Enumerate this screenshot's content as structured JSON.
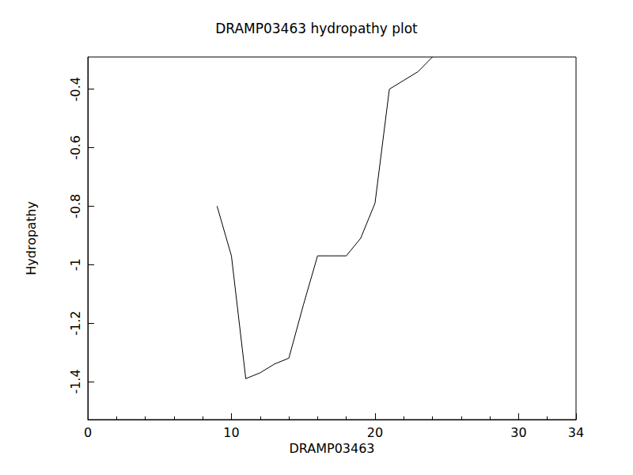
{
  "chart_data": {
    "type": "line",
    "title": "DRAMP03463 hydropathy plot",
    "x_label": "DRAMP03463",
    "y_label": "Hydropathy",
    "x": [
      9,
      10,
      11,
      12,
      13,
      14,
      15,
      16,
      17,
      18,
      19,
      20,
      21,
      22,
      23,
      24
    ],
    "values": [
      -0.8,
      -0.97,
      -1.39,
      -1.37,
      -1.34,
      -1.32,
      -1.14,
      -0.97,
      -0.97,
      -0.97,
      -0.91,
      -0.79,
      -0.4,
      -0.37,
      -0.34,
      -0.29
    ],
    "color": "#000000",
    "xlim": [
      0,
      34
    ],
    "xticks": [
      0,
      10,
      20,
      30
    ],
    "ylim": [
      -1.53,
      -0.29
    ],
    "yticks": [
      -1.4,
      -1.2,
      -1.0,
      -0.8,
      -0.6,
      -0.4
    ],
    "grid": false
  }
}
